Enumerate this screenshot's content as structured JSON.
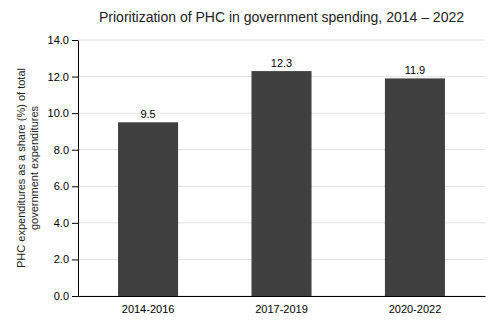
{
  "chart_data": {
    "type": "bar",
    "title": "Prioritization of PHC in government spending, 2014 – 2022",
    "ylabel": "PHC expenditures as a share (%) of total\ngovernment expenditures",
    "categories": [
      "2014-2016",
      "2017-2019",
      "2020-2022"
    ],
    "values": [
      9.5,
      12.3,
      11.9
    ],
    "color": "#404040",
    "ylim": [
      0,
      14.0
    ],
    "yticks": [
      {
        "value": 0.0,
        "label": "0.0"
      },
      {
        "value": 2.0,
        "label": "2.0"
      },
      {
        "value": 4.0,
        "label": "4.0"
      },
      {
        "value": 6.0,
        "label": "6.0"
      },
      {
        "value": 8.0,
        "label": "8.0"
      },
      {
        "value": 10.0,
        "label": "10.0"
      },
      {
        "value": 12.0,
        "label": "12.0"
      },
      {
        "value": 14.0,
        "label": "14.0"
      }
    ],
    "grid": true,
    "data_labels": true
  }
}
